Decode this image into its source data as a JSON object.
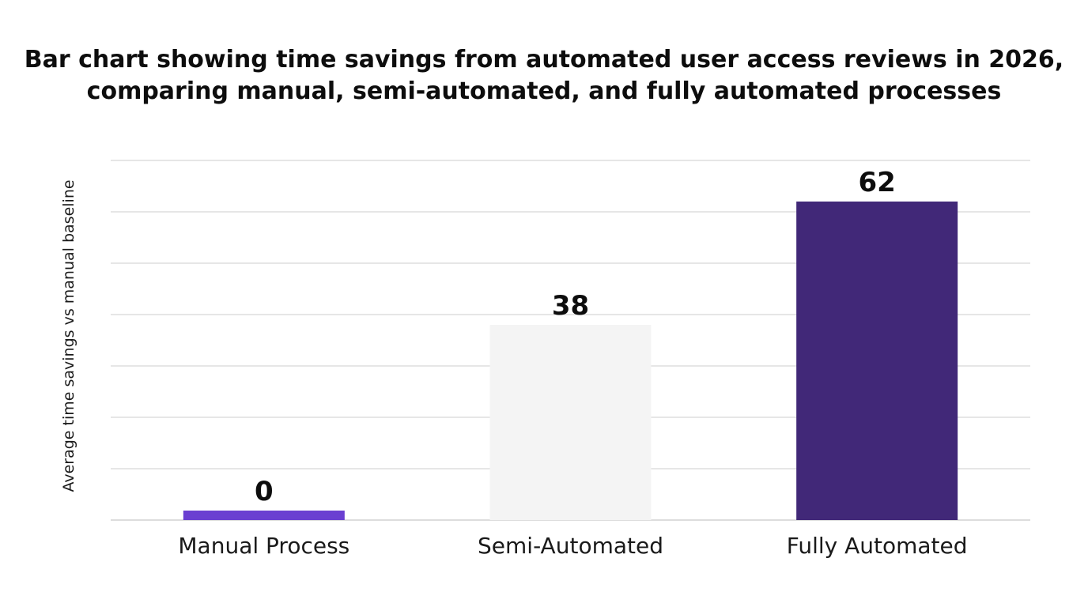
{
  "chart_data": {
    "type": "bar",
    "title_lines": [
      "Bar chart showing time savings from automated user access reviews in 2026,",
      "comparing manual, semi-automated, and fully automated processes"
    ],
    "categories": [
      "Manual Process",
      "Semi-Automated",
      "Fully Automated"
    ],
    "values": [
      0,
      38,
      62
    ],
    "data_labels": [
      "0",
      "38",
      "62"
    ],
    "colors": [
      "#6a3fd1",
      "#f4f4f4",
      "#412878"
    ],
    "xlabel": "",
    "ylabel": "Average time savings vs manual baseline",
    "ylim": [
      0,
      70
    ],
    "ytick_step": 10,
    "grid": true,
    "legend": "none"
  }
}
